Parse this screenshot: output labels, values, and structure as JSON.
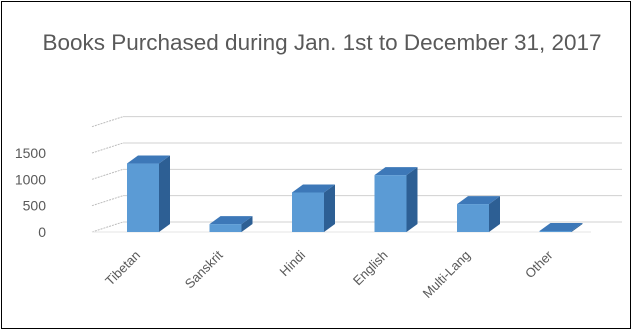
{
  "chart_data": {
    "type": "bar",
    "title": "Books Purchased during Jan. 1st to December 31, 2017",
    "categories": [
      "Tibetan",
      "Sanskrit",
      "Hindi",
      "English",
      "Multi-Lang",
      "Other"
    ],
    "values": [
      1300,
      150,
      750,
      1080,
      530,
      20
    ],
    "y_ticks": [
      "0",
      "500",
      "1000",
      "1500"
    ],
    "ylim": [
      0,
      2000
    ],
    "xlabel": "",
    "ylabel": "",
    "grid": true,
    "style": "3d-column",
    "colors": {
      "bar_front": "#5b9bd5",
      "bar_top": "#3d78b8",
      "bar_side": "#2d5f94",
      "grid": "#d0d0d0",
      "text": "#595959"
    }
  }
}
